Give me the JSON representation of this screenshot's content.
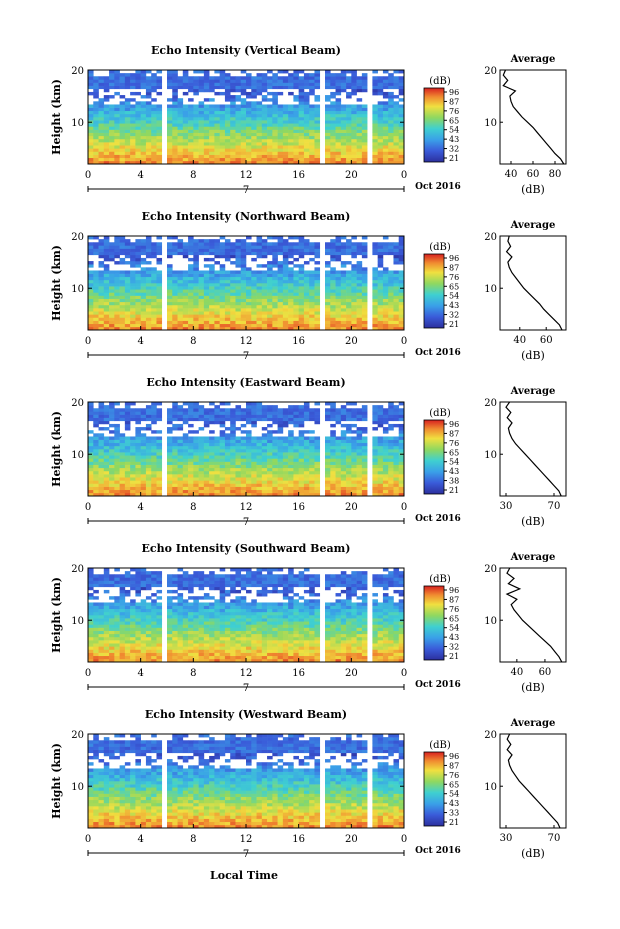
{
  "chart_data": [
    {
      "type": "heatmap",
      "title": "Echo Intensity (Vertical Beam)",
      "ylabel": "Height (km)",
      "xticks": [
        "0",
        "4",
        "8",
        "12",
        "16",
        "20",
        "0"
      ],
      "ylim": [
        2,
        20
      ],
      "yticks": [
        "10",
        "20"
      ],
      "x_range_hours": [
        0,
        24
      ],
      "data_gaps_hours": [
        [
          4.2,
          4.6
        ],
        [
          5.7,
          6.1
        ],
        [
          17.6,
          18.0
        ],
        [
          21.3,
          21.7
        ]
      ],
      "date_tick_label": "7",
      "date_suffix": "Oct 2016",
      "colorbar": {
        "label": "(dB)",
        "ticks": [
          "96",
          "87",
          "76",
          "65",
          "54",
          "43",
          "32",
          "21"
        ]
      },
      "average_profile": {
        "title": "Average",
        "xlabel": "(dB)",
        "xticks": [
          "40",
          "60",
          "80"
        ],
        "xlim": [
          30,
          90
        ],
        "yticks": [
          "10",
          "20"
        ],
        "heights_km": [
          2,
          3,
          4,
          5,
          6,
          7,
          8,
          9,
          10,
          11,
          12,
          13,
          14,
          15,
          16,
          17,
          18,
          19,
          20
        ],
        "values_db": [
          88,
          85,
          80,
          76,
          72,
          68,
          64,
          60,
          55,
          50,
          46,
          42,
          40,
          39,
          44,
          33,
          37,
          33,
          35
        ]
      }
    },
    {
      "type": "heatmap",
      "title": "Echo Intensity (Northward Beam)",
      "ylabel": "Height (km)",
      "xticks": [
        "0",
        "4",
        "8",
        "12",
        "16",
        "20",
        "0"
      ],
      "ylim": [
        2,
        20
      ],
      "yticks": [
        "10",
        "20"
      ],
      "x_range_hours": [
        0,
        24
      ],
      "data_gaps_hours": [
        [
          4.2,
          4.6
        ],
        [
          5.7,
          6.1
        ],
        [
          17.6,
          18.0
        ],
        [
          21.3,
          21.7
        ]
      ],
      "date_tick_label": "7",
      "date_suffix": "Oct 2016",
      "colorbar": {
        "label": "(dB)",
        "ticks": [
          "96",
          "87",
          "76",
          "65",
          "54",
          "43",
          "32",
          "21"
        ]
      },
      "average_profile": {
        "title": "Average",
        "xlabel": "(dB)",
        "xticks": [
          "40",
          "60"
        ],
        "xlim": [
          25,
          75
        ],
        "yticks": [
          "10",
          "20"
        ],
        "heights_km": [
          2,
          3,
          4,
          5,
          6,
          7,
          8,
          9,
          10,
          11,
          12,
          13,
          14,
          15,
          16,
          17,
          18,
          19,
          20
        ],
        "values_db": [
          72,
          70,
          66,
          62,
          58,
          55,
          51,
          47,
          43,
          40,
          37,
          34,
          32,
          31,
          34,
          30,
          33,
          31,
          32
        ]
      }
    },
    {
      "type": "heatmap",
      "title": "Echo Intensity (Eastward Beam)",
      "ylabel": "Height (km)",
      "xticks": [
        "0",
        "4",
        "8",
        "12",
        "16",
        "20",
        "0"
      ],
      "ylim": [
        2,
        20
      ],
      "yticks": [
        "10",
        "20"
      ],
      "x_range_hours": [
        0,
        24
      ],
      "data_gaps_hours": [
        [
          4.2,
          4.6
        ],
        [
          5.7,
          6.1
        ],
        [
          17.6,
          18.0
        ],
        [
          21.3,
          21.7
        ]
      ],
      "date_tick_label": "7",
      "date_suffix": "Oct 2016",
      "colorbar": {
        "label": "(dB)",
        "ticks": [
          "96",
          "87",
          "76",
          "65",
          "54",
          "43",
          "38",
          "21"
        ]
      },
      "average_profile": {
        "title": "Average",
        "xlabel": "(dB)",
        "xticks": [
          "30",
          "70"
        ],
        "xlim": [
          25,
          80
        ],
        "yticks": [
          "10",
          "20"
        ],
        "heights_km": [
          2,
          3,
          4,
          5,
          6,
          7,
          8,
          9,
          10,
          11,
          12,
          13,
          14,
          15,
          16,
          17,
          18,
          19,
          20
        ],
        "values_db": [
          76,
          74,
          70,
          66,
          62,
          58,
          54,
          50,
          46,
          42,
          38,
          35,
          33,
          32,
          35,
          31,
          34,
          30,
          33
        ]
      }
    },
    {
      "type": "heatmap",
      "title": "Echo Intensity (Southward Beam)",
      "ylabel": "Height (km)",
      "xticks": [
        "0",
        "4",
        "8",
        "12",
        "16",
        "20",
        "0"
      ],
      "ylim": [
        2,
        20
      ],
      "yticks": [
        "10",
        "20"
      ],
      "x_range_hours": [
        0,
        24
      ],
      "data_gaps_hours": [
        [
          4.2,
          4.6
        ],
        [
          5.7,
          6.1
        ],
        [
          17.6,
          18.0
        ],
        [
          21.3,
          21.7
        ]
      ],
      "date_tick_label": "7",
      "date_suffix": "Oct 2016",
      "colorbar": {
        "label": "(dB)",
        "ticks": [
          "96",
          "87",
          "76",
          "65",
          "54",
          "43",
          "32",
          "21"
        ]
      },
      "average_profile": {
        "title": "Average",
        "xlabel": "(dB)",
        "xticks": [
          "40",
          "60"
        ],
        "xlim": [
          28,
          75
        ],
        "yticks": [
          "10",
          "20"
        ],
        "heights_km": [
          2,
          3,
          4,
          5,
          6,
          7,
          8,
          9,
          10,
          11,
          12,
          13,
          14,
          15,
          16,
          17,
          18,
          19,
          20
        ],
        "values_db": [
          72,
          70,
          67,
          64,
          60,
          56,
          52,
          48,
          44,
          41,
          38,
          36,
          40,
          33,
          42,
          34,
          38,
          33,
          35
        ]
      }
    },
    {
      "type": "heatmap",
      "title": "Echo Intensity (Westward Beam)",
      "ylabel": "Height (km)",
      "xlabel": "Local Time",
      "xticks": [
        "0",
        "4",
        "8",
        "12",
        "16",
        "20",
        "0"
      ],
      "ylim": [
        2,
        20
      ],
      "yticks": [
        "10",
        "20"
      ],
      "x_range_hours": [
        0,
        24
      ],
      "data_gaps_hours": [
        [
          4.2,
          4.6
        ],
        [
          5.7,
          6.1
        ],
        [
          17.6,
          18.0
        ],
        [
          21.3,
          21.7
        ]
      ],
      "date_tick_label": "7",
      "date_suffix": "Oct 2016",
      "colorbar": {
        "label": "(dB)",
        "ticks": [
          "96",
          "87",
          "76",
          "65",
          "54",
          "43",
          "33",
          "21"
        ]
      },
      "average_profile": {
        "title": "Average",
        "xlabel": "(dB)",
        "xticks": [
          "30",
          "70"
        ],
        "xlim": [
          25,
          80
        ],
        "yticks": [
          "10",
          "20"
        ],
        "heights_km": [
          2,
          3,
          4,
          5,
          6,
          7,
          8,
          9,
          10,
          11,
          12,
          13,
          14,
          15,
          16,
          17,
          18,
          19,
          20
        ],
        "values_db": [
          75,
          73,
          69,
          65,
          61,
          57,
          53,
          49,
          45,
          41,
          38,
          35,
          33,
          32,
          35,
          31,
          34,
          31,
          33
        ]
      }
    }
  ]
}
